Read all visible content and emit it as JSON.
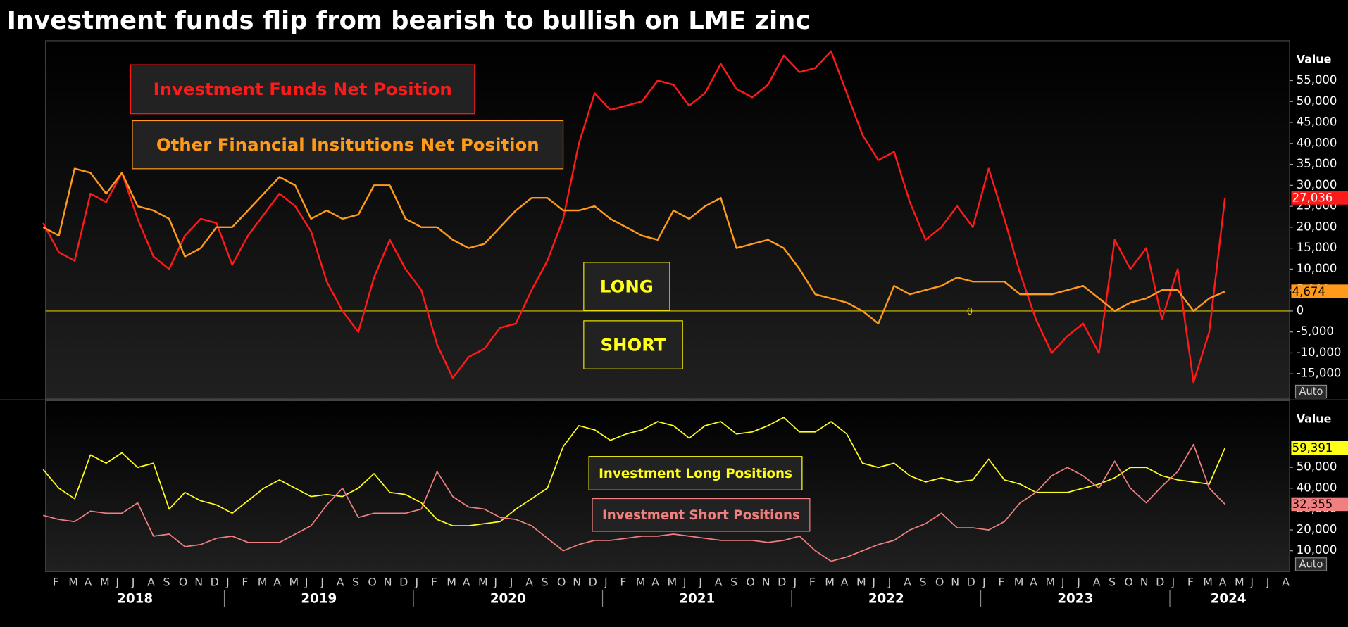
{
  "chart_data": [
    {
      "type": "line",
      "title": "Investment funds flip from bearish to bullish on LME zinc",
      "axis_title": "Value",
      "auto_button": "Auto",
      "annotations": [
        "LONG",
        "SHORT"
      ],
      "x": [
        "2018-01",
        "2018-02",
        "2018-03",
        "2018-04",
        "2018-05",
        "2018-06",
        "2018-07",
        "2018-08",
        "2018-09",
        "2018-10",
        "2018-11",
        "2018-12",
        "2019-01",
        "2019-02",
        "2019-03",
        "2019-04",
        "2019-05",
        "2019-06",
        "2019-07",
        "2019-08",
        "2019-09",
        "2019-10",
        "2019-11",
        "2019-12",
        "2020-01",
        "2020-02",
        "2020-03",
        "2020-04",
        "2020-05",
        "2020-06",
        "2020-07",
        "2020-08",
        "2020-09",
        "2020-10",
        "2020-11",
        "2020-12",
        "2021-01",
        "2021-02",
        "2021-03",
        "2021-04",
        "2021-05",
        "2021-06",
        "2021-07",
        "2021-08",
        "2021-09",
        "2021-10",
        "2021-11",
        "2021-12",
        "2022-01",
        "2022-02",
        "2022-03",
        "2022-04",
        "2022-05",
        "2022-06",
        "2022-07",
        "2022-08",
        "2022-09",
        "2022-10",
        "2022-11",
        "2022-12",
        "2023-01",
        "2023-02",
        "2023-03",
        "2023-04",
        "2023-05",
        "2023-06",
        "2023-07",
        "2023-08",
        "2023-09",
        "2023-10",
        "2023-11",
        "2023-12",
        "2024-01",
        "2024-02",
        "2024-03",
        "2024-04"
      ],
      "ylim": [
        -21000,
        64500
      ],
      "yticks": [
        {
          "value": -15000,
          "label": "-15,000"
        },
        {
          "value": -10000,
          "label": "-10,000"
        },
        {
          "value": -5000,
          "label": "-5,000"
        },
        0,
        {
          "value": 5000,
          "label": "5,000"
        },
        {
          "value": 10000,
          "label": "10,000"
        },
        {
          "value": 15000,
          "label": "15,000"
        },
        {
          "value": 20000,
          "label": "20,000"
        },
        {
          "value": 25000,
          "label": "25,000"
        },
        {
          "value": 30000,
          "label": "30,000"
        },
        {
          "value": 35000,
          "label": "35,000"
        },
        {
          "value": 40000,
          "label": "40,000"
        },
        {
          "value": 45000,
          "label": "45,000"
        },
        {
          "value": 50000,
          "label": "50,000"
        },
        {
          "value": 55000,
          "label": "55,000"
        }
      ],
      "zero_line": true,
      "grid": false,
      "series": [
        {
          "name": "Investment Funds Net Position",
          "color": "#ff1a1a",
          "values": [
            21000,
            14000,
            12000,
            28000,
            26000,
            33000,
            22000,
            13000,
            10000,
            18000,
            22000,
            21000,
            11000,
            18000,
            23000,
            28000,
            25000,
            19000,
            7000,
            0,
            -5000,
            8000,
            17000,
            10000,
            5000,
            -8000,
            -16000,
            -11000,
            -9000,
            -4000,
            -3000,
            5000,
            12000,
            22000,
            40000,
            52000,
            48000,
            49000,
            50000,
            55000,
            54000,
            49000,
            52000,
            59000,
            53000,
            51000,
            54000,
            61000,
            57000,
            58000,
            62000,
            52000,
            42000,
            36000,
            38000,
            26000,
            17000,
            20000,
            25000,
            20000,
            34000,
            22000,
            9000,
            -2000,
            -10000,
            -6000,
            -3000,
            -10000,
            17000,
            10000,
            15000,
            -2000,
            10000,
            -17000,
            -5000,
            27036
          ],
          "value_labels": [
            null,
            null,
            null,
            null,
            null,
            null,
            null,
            null,
            null,
            null,
            null,
            null,
            null,
            null,
            null,
            null,
            null,
            null,
            null,
            null,
            null,
            null,
            null,
            null,
            null,
            null,
            null,
            null,
            null,
            null,
            null,
            null,
            null,
            null,
            null,
            null,
            null,
            null,
            null,
            null,
            null,
            null,
            null,
            null,
            null,
            null,
            null,
            null,
            null,
            null,
            null,
            null,
            null,
            null,
            null,
            null,
            null,
            null,
            null,
            null,
            null,
            null,
            null,
            null,
            null,
            null,
            null,
            null,
            null,
            null,
            null,
            null,
            null,
            null,
            null,
            "27,036"
          ]
        },
        {
          "name": "Other Financial Insitutions Net Position",
          "color": "#ff9a1a",
          "values": [
            20000,
            18000,
            34000,
            33000,
            28000,
            33000,
            25000,
            24000,
            22000,
            13000,
            15000,
            20000,
            20000,
            24000,
            28000,
            32000,
            30000,
            22000,
            24000,
            22000,
            23000,
            30000,
            30000,
            22000,
            20000,
            20000,
            17000,
            15000,
            16000,
            20000,
            24000,
            27000,
            27000,
            24000,
            24000,
            25000,
            22000,
            20000,
            18000,
            17000,
            24000,
            22000,
            25000,
            27000,
            15000,
            16000,
            17000,
            15000,
            10000,
            4000,
            3000,
            2000,
            0,
            -3000,
            6000,
            4000,
            5000,
            6000,
            8000,
            7000,
            7000,
            7000,
            4000,
            4000,
            4000,
            5000,
            6000,
            3000,
            0,
            2000,
            3000,
            5000,
            5000,
            0,
            3000,
            4674
          ],
          "value_labels": [
            null,
            null,
            null,
            null,
            null,
            null,
            null,
            null,
            null,
            null,
            null,
            null,
            null,
            null,
            null,
            null,
            null,
            null,
            null,
            null,
            null,
            null,
            null,
            null,
            null,
            null,
            null,
            null,
            null,
            null,
            null,
            null,
            null,
            null,
            null,
            null,
            null,
            null,
            null,
            null,
            null,
            null,
            null,
            null,
            null,
            null,
            null,
            null,
            null,
            null,
            null,
            null,
            null,
            null,
            null,
            null,
            null,
            null,
            null,
            null,
            null,
            null,
            null,
            null,
            null,
            null,
            null,
            null,
            null,
            null,
            null,
            null,
            null,
            null,
            null,
            "4,674"
          ]
        }
      ]
    },
    {
      "type": "line",
      "axis_title": "Value",
      "auto_button": "Auto",
      "x": [
        "2018-01",
        "2018-02",
        "2018-03",
        "2018-04",
        "2018-05",
        "2018-06",
        "2018-07",
        "2018-08",
        "2018-09",
        "2018-10",
        "2018-11",
        "2018-12",
        "2019-01",
        "2019-02",
        "2019-03",
        "2019-04",
        "2019-05",
        "2019-06",
        "2019-07",
        "2019-08",
        "2019-09",
        "2019-10",
        "2019-11",
        "2019-12",
        "2020-01",
        "2020-02",
        "2020-03",
        "2020-04",
        "2020-05",
        "2020-06",
        "2020-07",
        "2020-08",
        "2020-09",
        "2020-10",
        "2020-11",
        "2020-12",
        "2021-01",
        "2021-02",
        "2021-03",
        "2021-04",
        "2021-05",
        "2021-06",
        "2021-07",
        "2021-08",
        "2021-09",
        "2021-10",
        "2021-11",
        "2021-12",
        "2022-01",
        "2022-02",
        "2022-03",
        "2022-04",
        "2022-05",
        "2022-06",
        "2022-07",
        "2022-08",
        "2022-09",
        "2022-10",
        "2022-11",
        "2022-12",
        "2023-01",
        "2023-02",
        "2023-03",
        "2023-04",
        "2023-05",
        "2023-06",
        "2023-07",
        "2023-08",
        "2023-09",
        "2023-10",
        "2023-11",
        "2023-12",
        "2024-01",
        "2024-02",
        "2024-03",
        "2024-04"
      ],
      "ylim": [
        0,
        82000
      ],
      "yticks": [
        {
          "value": 10000,
          "label": "10,000"
        },
        {
          "value": 20000,
          "label": "20,000"
        },
        {
          "value": 30000,
          "label": "30,000"
        },
        {
          "value": 40000,
          "label": "40,000"
        },
        {
          "value": 50000,
          "label": "50,000"
        }
      ],
      "grid": false,
      "month_ticks": [
        "F",
        "M",
        "A",
        "M",
        "J",
        "J",
        "A",
        "S",
        "O",
        "N",
        "D",
        "J",
        "F",
        "M",
        "A",
        "M",
        "J",
        "J",
        "A",
        "S",
        "O",
        "N",
        "D",
        "J",
        "F",
        "M",
        "A",
        "M",
        "J",
        "J",
        "A",
        "S",
        "O",
        "N",
        "D",
        "J",
        "F",
        "M",
        "A",
        "M",
        "J",
        "J",
        "A",
        "S",
        "O",
        "N",
        "D",
        "J",
        "F",
        "M",
        "A",
        "M",
        "J",
        "J",
        "A",
        "S",
        "O",
        "N",
        "D",
        "J",
        "F",
        "M",
        "A",
        "M",
        "J",
        "J",
        "A",
        "S",
        "O",
        "N",
        "D",
        "J",
        "F",
        "M",
        "A",
        "M",
        "J",
        "J",
        "A"
      ],
      "year_labels": [
        "2018",
        "2019",
        "2020",
        "2021",
        "2022",
        "2023",
        "2024"
      ],
      "series": [
        {
          "name": "Investment Long Positions",
          "color": "#ffff1a",
          "values": [
            49000,
            40000,
            35000,
            56000,
            52000,
            57000,
            50000,
            52000,
            30000,
            38000,
            34000,
            32000,
            28000,
            34000,
            40000,
            44000,
            40000,
            36000,
            37000,
            36000,
            40000,
            47000,
            38000,
            37000,
            33000,
            25000,
            22000,
            22000,
            23000,
            24000,
            30000,
            35000,
            40000,
            60000,
            70000,
            68000,
            63000,
            66000,
            68000,
            72000,
            70000,
            64000,
            70000,
            72000,
            66000,
            67000,
            70000,
            74000,
            67000,
            67000,
            72000,
            66000,
            52000,
            50000,
            52000,
            46000,
            43000,
            45000,
            43000,
            44000,
            54000,
            44000,
            42000,
            38000,
            38000,
            38000,
            40000,
            42000,
            45000,
            50000,
            50000,
            46000,
            44000,
            43000,
            42000,
            59391
          ],
          "value_labels": [
            null,
            null,
            null,
            null,
            null,
            null,
            null,
            null,
            null,
            null,
            null,
            null,
            null,
            null,
            null,
            null,
            null,
            null,
            null,
            null,
            null,
            null,
            null,
            null,
            null,
            null,
            null,
            null,
            null,
            null,
            null,
            null,
            null,
            null,
            null,
            null,
            null,
            null,
            null,
            null,
            null,
            null,
            null,
            null,
            null,
            null,
            null,
            null,
            null,
            null,
            null,
            null,
            null,
            null,
            null,
            null,
            null,
            null,
            null,
            null,
            null,
            null,
            null,
            null,
            null,
            null,
            null,
            null,
            null,
            null,
            null,
            null,
            null,
            null,
            null,
            "59,391"
          ]
        },
        {
          "name": "Investment Short Positions",
          "color": "#f07f7f",
          "values": [
            27000,
            25000,
            24000,
            29000,
            28000,
            28000,
            33000,
            17000,
            18000,
            12000,
            13000,
            16000,
            17000,
            14000,
            14000,
            14000,
            18000,
            22000,
            32000,
            40000,
            26000,
            28000,
            28000,
            28000,
            30000,
            48000,
            36000,
            31000,
            30000,
            26000,
            25000,
            22000,
            16000,
            10000,
            13000,
            15000,
            15000,
            16000,
            17000,
            17000,
            18000,
            17000,
            16000,
            15000,
            15000,
            15000,
            14000,
            15000,
            17000,
            10000,
            5000,
            7000,
            10000,
            13000,
            15000,
            20000,
            23000,
            28000,
            21000,
            21000,
            20000,
            24000,
            33000,
            38000,
            46000,
            50000,
            46000,
            40000,
            53000,
            40000,
            33000,
            41000,
            48000,
            61000,
            40000,
            32355
          ],
          "value_labels": [
            null,
            null,
            null,
            null,
            null,
            null,
            null,
            null,
            null,
            null,
            null,
            null,
            null,
            null,
            null,
            null,
            null,
            null,
            null,
            null,
            null,
            null,
            null,
            null,
            null,
            null,
            null,
            null,
            null,
            null,
            null,
            null,
            null,
            null,
            null,
            null,
            null,
            null,
            null,
            null,
            null,
            null,
            null,
            null,
            null,
            null,
            null,
            null,
            null,
            null,
            null,
            null,
            null,
            null,
            null,
            null,
            null,
            null,
            null,
            null,
            null,
            null,
            null,
            null,
            null,
            null,
            null,
            null,
            null,
            null,
            null,
            null,
            null,
            null,
            null,
            "32,355"
          ]
        }
      ]
    }
  ]
}
